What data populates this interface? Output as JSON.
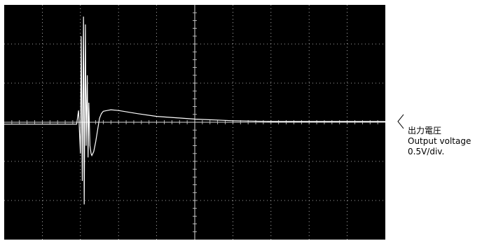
{
  "chart_data": {
    "type": "line",
    "title": "",
    "xlabel": "",
    "ylabel": "",
    "grid": true,
    "x_divisions": 10,
    "y_divisions": 6,
    "xlim": [
      0,
      10
    ],
    "ylim": [
      -3,
      3
    ],
    "series": [
      {
        "x": [
          0,
          1.9,
          1.95,
          2.0,
          2.02,
          2.05,
          2.08,
          2.1,
          2.13,
          2.15,
          2.18,
          2.2,
          2.22,
          2.25,
          2.28,
          2.3,
          2.35,
          2.4,
          2.45,
          2.5,
          2.55,
          2.6,
          2.7,
          2.8,
          3.0,
          3.5,
          4.0,
          5.0,
          6.0,
          7.0,
          8.0,
          9.0,
          10.0
        ],
        "y": [
          -0.05,
          -0.05,
          0.3,
          -0.8,
          2.2,
          -1.5,
          2.7,
          -2.1,
          2.5,
          -0.6,
          1.2,
          -0.9,
          0.5,
          -0.6,
          -0.8,
          -0.85,
          -0.75,
          -0.5,
          -0.2,
          0.1,
          0.22,
          0.28,
          0.3,
          0.32,
          0.3,
          0.22,
          0.15,
          0.08,
          0.04,
          0.02,
          0.02,
          0.02,
          0.02
        ],
        "color": "#ffffff"
      }
    ],
    "trace_label": {
      "line1": "出力電圧",
      "line2": "Output voltage",
      "line3": "0.5V/div."
    },
    "colors": {
      "screen": "#000000",
      "grid": "#d8d8d8",
      "trace": "#ffffff"
    }
  }
}
